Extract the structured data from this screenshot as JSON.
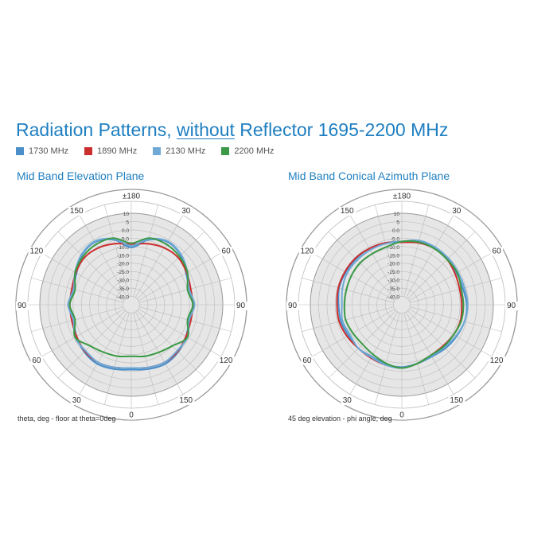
{
  "heading": {
    "prefix": "Radiation Patterns,",
    "emphasis": "without",
    "suffix": "Reflector 1695-2200 MHz"
  },
  "legend": [
    {
      "label": "1730 MHz",
      "color": "#4a8fca"
    },
    {
      "label": "1890 MHz",
      "color": "#cc2e2e"
    },
    {
      "label": "2130 MHz",
      "color": "#6fa9d6"
    },
    {
      "label": "2200 MHz",
      "color": "#3a9a45"
    }
  ],
  "colors": {
    "accent": "#1f7fc1",
    "plot_fill": "#e6e6e6",
    "grid": "#bbbbbb"
  },
  "chart_data": [
    {
      "type": "polar",
      "title": "Mid Band Elevation Plane",
      "caption": "theta, deg - floor at theta=0deg",
      "radial_range_db": [
        -45,
        10
      ],
      "radial_ticks": [
        "10",
        "5",
        "0.0",
        "-5.0",
        "-10.0",
        "-15.0",
        "-20.0",
        "-25.0",
        "-30.0",
        "-35.0",
        "-40.0"
      ],
      "angle_labels": [
        {
          "text": "±180",
          "angle": 0
        },
        {
          "text": "30",
          "angle": 30
        },
        {
          "text": "60",
          "angle": 60
        },
        {
          "text": "90",
          "angle": 90
        },
        {
          "text": "120",
          "angle": 120
        },
        {
          "text": "150",
          "angle": 150
        },
        {
          "text": "0",
          "angle": 180
        },
        {
          "text": "30",
          "angle": 210
        },
        {
          "text": "60",
          "angle": 240
        },
        {
          "text": "90",
          "angle": 270
        },
        {
          "text": "120",
          "angle": 300
        },
        {
          "text": "150",
          "angle": 330
        }
      ],
      "series": [
        {
          "name": "1730 MHz",
          "angles": [
            0,
            15,
            30,
            45,
            60,
            75,
            90,
            105,
            120,
            135,
            150,
            165,
            180,
            195,
            210,
            225,
            240,
            255,
            270,
            285,
            300,
            315,
            330,
            345
          ],
          "values": [
            -10.5,
            -4.5,
            -1.5,
            -3,
            -7,
            -9,
            -8,
            -9,
            -7,
            -5,
            -4,
            -5,
            -6,
            -5,
            -4,
            -5,
            -7,
            -9,
            -8,
            -9,
            -7,
            -3,
            -1.5,
            -4.5
          ]
        },
        {
          "name": "1890 MHz",
          "angles": [
            0,
            15,
            30,
            45,
            60,
            75,
            90,
            105,
            120,
            135,
            150,
            165,
            180,
            195,
            210,
            225,
            240,
            255,
            270,
            285,
            300,
            315,
            330,
            345
          ],
          "values": [
            -8.5,
            -7,
            -5.5,
            -5,
            -6.5,
            -8,
            -8,
            -8,
            -7,
            -5.5,
            -5,
            -6,
            -7,
            -6,
            -5,
            -5.5,
            -7,
            -8,
            -8,
            -8,
            -6.5,
            -5,
            -5.5,
            -7
          ]
        },
        {
          "name": "2130 MHz",
          "angles": [
            0,
            15,
            30,
            45,
            60,
            75,
            90,
            105,
            120,
            135,
            150,
            165,
            180,
            195,
            210,
            225,
            240,
            255,
            270,
            285,
            300,
            315,
            330,
            345
          ],
          "values": [
            -9.5,
            -4,
            -1,
            -2.5,
            -6,
            -9,
            -7,
            -9,
            -6,
            -6,
            -5,
            -6,
            -7,
            -6,
            -5,
            -6,
            -6,
            -9,
            -7,
            -9,
            -6,
            -2.5,
            -1,
            -4
          ]
        },
        {
          "name": "2200 MHz",
          "angles": [
            0,
            15,
            30,
            45,
            60,
            75,
            90,
            105,
            120,
            135,
            150,
            165,
            180,
            195,
            210,
            225,
            240,
            255,
            270,
            285,
            300,
            315,
            330,
            345
          ],
          "values": [
            -8,
            -3.5,
            -3,
            -4,
            -6,
            -10,
            -8,
            -10,
            -6,
            -10,
            -12,
            -13,
            -14,
            -13,
            -12,
            -10,
            -6,
            -10,
            -8,
            -10,
            -6,
            -4,
            -3,
            -3.5
          ]
        }
      ]
    },
    {
      "type": "polar",
      "title": "Mid Band Conical Azimuth Plane",
      "caption": "45 deg elevation - phi angle, deg",
      "radial_range_db": [
        -45,
        10
      ],
      "radial_ticks": [
        "10",
        "5",
        "0.0",
        "-5.0",
        "-10.0",
        "-15.0",
        "-20.0",
        "-25.0",
        "-30.0",
        "-35.0",
        "-40.0"
      ],
      "angle_labels": [
        {
          "text": "±180",
          "angle": 0
        },
        {
          "text": "30",
          "angle": 30
        },
        {
          "text": "60",
          "angle": 60
        },
        {
          "text": "90",
          "angle": 90
        },
        {
          "text": "120",
          "angle": 120
        },
        {
          "text": "150",
          "angle": 150
        },
        {
          "text": "0",
          "angle": 180
        },
        {
          "text": "30",
          "angle": 210
        },
        {
          "text": "60",
          "angle": 240
        },
        {
          "text": "90",
          "angle": 270
        },
        {
          "text": "120",
          "angle": 300
        },
        {
          "text": "150",
          "angle": 330
        }
      ],
      "series": [
        {
          "name": "1730 MHz",
          "angles": [
            0,
            15,
            30,
            45,
            60,
            75,
            90,
            105,
            120,
            135,
            150,
            165,
            180,
            195,
            210,
            225,
            240,
            255,
            270,
            285,
            300,
            315,
            330,
            345
          ],
          "values": [
            -7,
            -5.5,
            -5,
            -6,
            -7,
            -7,
            -6,
            -6,
            -7,
            -8,
            -9,
            -8.5,
            -7.5,
            -8,
            -9,
            -8,
            -8,
            -7,
            -7,
            -6,
            -6,
            -6,
            -6,
            -6.5
          ]
        },
        {
          "name": "1890 MHz",
          "angles": [
            0,
            15,
            30,
            45,
            60,
            75,
            90,
            105,
            120,
            135,
            150,
            165,
            180,
            195,
            210,
            225,
            240,
            255,
            270,
            285,
            300,
            315,
            330,
            345
          ],
          "values": [
            -7.5,
            -6.5,
            -6,
            -6.5,
            -8,
            -9,
            -9,
            -8.5,
            -9,
            -10,
            -10,
            -8.5,
            -7,
            -7.5,
            -8,
            -8,
            -7,
            -6,
            -6,
            -5.5,
            -5.5,
            -5.5,
            -6,
            -6.5
          ]
        },
        {
          "name": "2130 MHz",
          "angles": [
            0,
            15,
            30,
            45,
            60,
            75,
            90,
            105,
            120,
            135,
            150,
            165,
            180,
            195,
            210,
            225,
            240,
            255,
            270,
            285,
            300,
            315,
            330,
            345
          ],
          "values": [
            -7,
            -5,
            -5,
            -5.5,
            -6,
            -6,
            -5.5,
            -6,
            -7.5,
            -9,
            -9.5,
            -8.5,
            -7,
            -7.5,
            -8.5,
            -8,
            -9,
            -8,
            -9,
            -8,
            -7,
            -7,
            -7,
            -7
          ]
        },
        {
          "name": "2200 MHz",
          "angles": [
            0,
            15,
            30,
            45,
            60,
            75,
            90,
            105,
            120,
            135,
            150,
            165,
            180,
            195,
            210,
            225,
            240,
            255,
            270,
            285,
            300,
            315,
            330,
            345
          ],
          "values": [
            -7,
            -6,
            -6,
            -6.5,
            -6.5,
            -8,
            -8,
            -8,
            -9,
            -9.5,
            -10,
            -8.5,
            -7,
            -8.5,
            -10.5,
            -11.5,
            -11,
            -10,
            -10.5,
            -10.5,
            -10,
            -9.5,
            -9.5,
            -9
          ]
        }
      ]
    }
  ]
}
